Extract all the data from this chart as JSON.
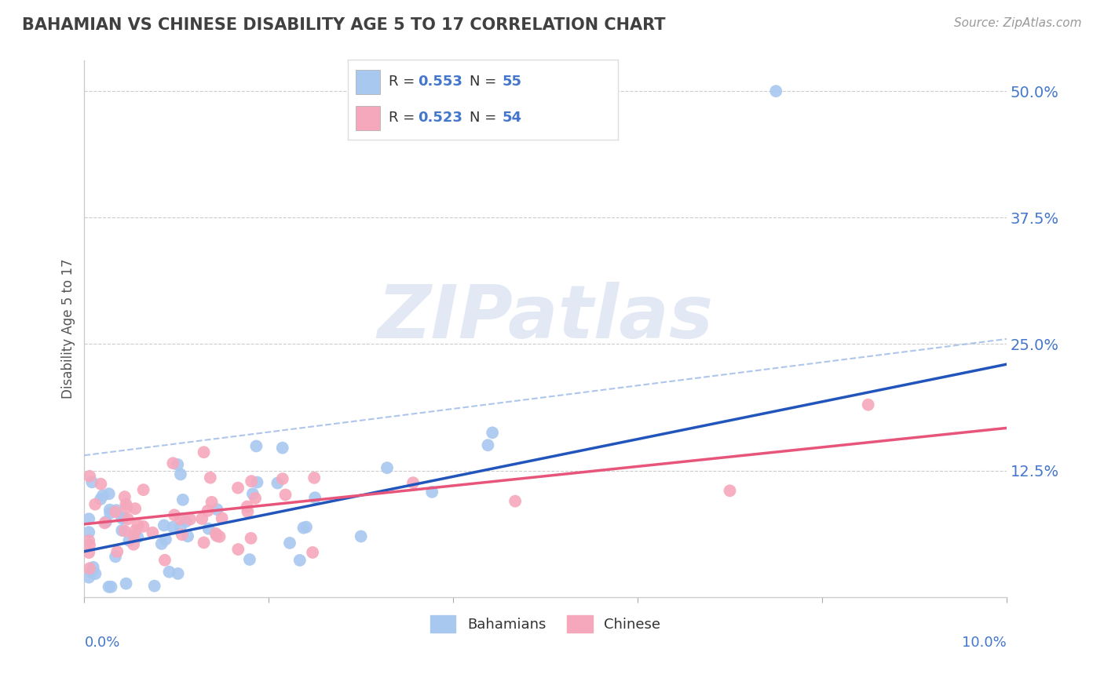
{
  "title": "BAHAMIAN VS CHINESE DISABILITY AGE 5 TO 17 CORRELATION CHART",
  "source": "Source: ZipAtlas.com",
  "ylabel": "Disability Age 5 to 17",
  "ytick_vals": [
    12.5,
    25.0,
    37.5,
    50.0
  ],
  "xlim": [
    0.0,
    10.0
  ],
  "ylim": [
    0.0,
    53.0
  ],
  "ymin_display": 0.0,
  "bahamian_R": 0.553,
  "bahamian_N": 55,
  "chinese_R": 0.523,
  "chinese_N": 54,
  "bahamian_color": "#a8c8f0",
  "chinese_color": "#f5a8bc",
  "bahamian_line_color": "#2255bb",
  "chinese_line_color": "#e8557a",
  "dashed_line_color": "#a0bce8",
  "legend_bahamian_label": "Bahamians",
  "legend_chinese_label": "Chinese",
  "watermark_text": "ZIPatlas",
  "title_color": "#404040",
  "axis_label_color": "#555555",
  "tick_color": "#4477cc",
  "grid_color": "#cccccc",
  "background_color": "#ffffff",
  "legend_r_color": "#333333",
  "legend_n_color": "#4477cc",
  "bahamian_intercept": 4.5,
  "bahamian_slope": 1.85,
  "chinese_intercept": 7.2,
  "chinese_slope": 0.95,
  "dashed_intercept": 14.0,
  "dashed_slope": 1.15
}
